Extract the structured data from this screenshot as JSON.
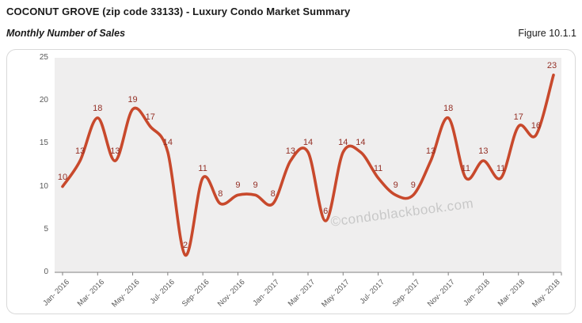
{
  "header": {
    "title": "COCONUT GROVE (zip code 33133) - Luxury Condo Market Summary",
    "subtitle": "Monthly Number of Sales",
    "figure_label": "Figure 10.1.1"
  },
  "watermark": "©condoblackbook.com",
  "chart_data": {
    "type": "line",
    "title": "Monthly Number of Sales",
    "categories": [
      "Jan-2016",
      "Feb-2016",
      "Mar-2016",
      "Apr-2016",
      "May-2016",
      "Jun-2016",
      "Jul-2016",
      "Aug-2016",
      "Sep-2016",
      "Oct-2016",
      "Nov-2016",
      "Dec-2016",
      "Jan-2017",
      "Feb-2017",
      "Mar-2017",
      "Apr-2017",
      "May-2017",
      "Jun-2017",
      "Jul-2017",
      "Aug-2017",
      "Sep-2017",
      "Oct-2017",
      "Nov-2017",
      "Dec-2017",
      "Jan-2018",
      "Feb-2018",
      "Mar-2018",
      "Apr-2018",
      "May-2018"
    ],
    "values": [
      10,
      13,
      18,
      13,
      19,
      17,
      14,
      2,
      11,
      8,
      9,
      9,
      8,
      13,
      14,
      6,
      14,
      14,
      11,
      9,
      9,
      13,
      18,
      11,
      13,
      11,
      17,
      16,
      23
    ],
    "xtick_labels": [
      "Jan- 2016",
      "Mar- 2016",
      "May- 2016",
      "Jul- 2016",
      "Sep- 2016",
      "Nov- 2016",
      "Jan- 2017",
      "Mar- 2017",
      "May- 2017",
      "Jul- 2017",
      "Sep- 2017",
      "Nov- 2017",
      "Jan- 2018",
      "Mar- 2018",
      "May- 2018"
    ],
    "yticks": [
      0,
      5,
      10,
      15,
      20,
      25
    ],
    "ylim": [
      0,
      25
    ],
    "grid": false,
    "legend": "none",
    "line_color": "#c8492c",
    "point_label_color": "#943026",
    "plot_bg": "#efeeee",
    "axis_color": "#808080",
    "tick_text_color": "#595959"
  }
}
